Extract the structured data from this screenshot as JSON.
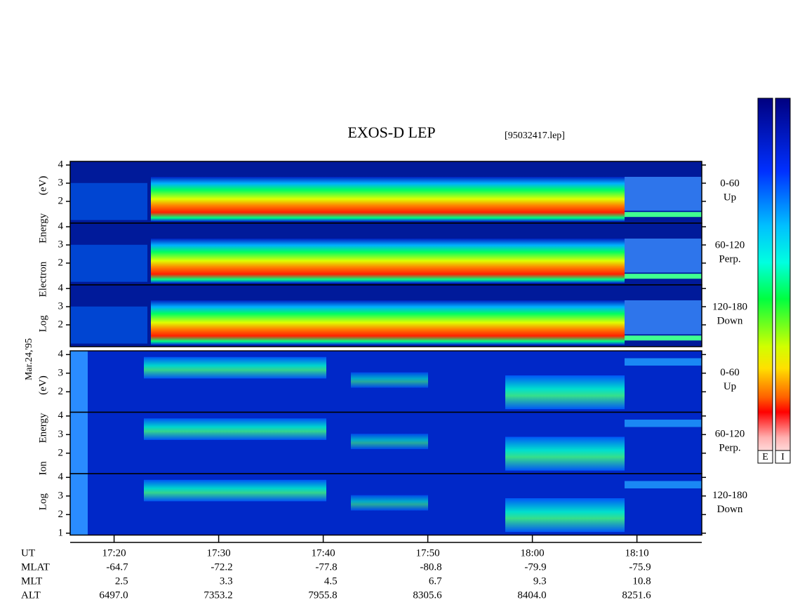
{
  "title": "EXOS-D LEP",
  "file": "[95032417.lep]",
  "date": "Mar.24,'95",
  "chart_data": {
    "type": "spectrogram",
    "xlim": [
      15.8,
      76.2
    ],
    "xticks": [
      {
        "value": 20,
        "label": "17:20"
      },
      {
        "value": 30,
        "label": "17:30"
      },
      {
        "value": 40,
        "label": "17:40"
      },
      {
        "value": 50,
        "label": "17:50"
      },
      {
        "value": 60,
        "label": "18:00"
      },
      {
        "value": 70,
        "label": "18:10"
      }
    ],
    "groups": [
      {
        "ylabel": "Log Electron Energy (eV)",
        "panels": [
          {
            "label": [
              "0-60",
              "Up"
            ],
            "ylim": [
              0.8,
              4.2
            ],
            "yticks": [
              2,
              3,
              4
            ]
          },
          {
            "label": [
              "60-120",
              "Perp."
            ],
            "ylim": [
              0.8,
              4.2
            ],
            "yticks": [
              2,
              3,
              4
            ]
          },
          {
            "label": [
              "120-180",
              "Down"
            ],
            "ylim": [
              0.8,
              4.2
            ],
            "yticks": [
              2,
              3,
              4
            ]
          }
        ]
      },
      {
        "ylabel": "Log Ion Energy (eV)",
        "panels": [
          {
            "label": [
              "0-60",
              "Up"
            ],
            "ylim": [
              0.9,
              4.2
            ],
            "yticks": [
              2,
              3,
              4
            ]
          },
          {
            "label": [
              "60-120",
              "Perp."
            ],
            "ylim": [
              0.9,
              4.2
            ],
            "yticks": [
              2,
              3,
              4
            ]
          },
          {
            "label": [
              "120-180",
              "Down"
            ],
            "ylim": [
              0.9,
              4.2
            ],
            "yticks": [
              1,
              2,
              3,
              4
            ]
          }
        ]
      }
    ]
  },
  "ut_label": "UT",
  "orbit": {
    "rows": [
      {
        "name": "MLAT",
        "values": [
          "-64.7",
          "-72.2",
          "-77.8",
          "-80.8",
          "-79.9",
          "-75.9"
        ]
      },
      {
        "name": "MLT",
        "values": [
          "2.5",
          "3.3",
          "4.5",
          "6.7",
          "9.3",
          "10.8"
        ]
      },
      {
        "name": "ALT",
        "values": [
          "6497.0",
          "7353.2",
          "7955.8",
          "8305.6",
          "8404.0",
          "8251.6"
        ]
      }
    ]
  },
  "colorbars": [
    "E",
    "I"
  ]
}
